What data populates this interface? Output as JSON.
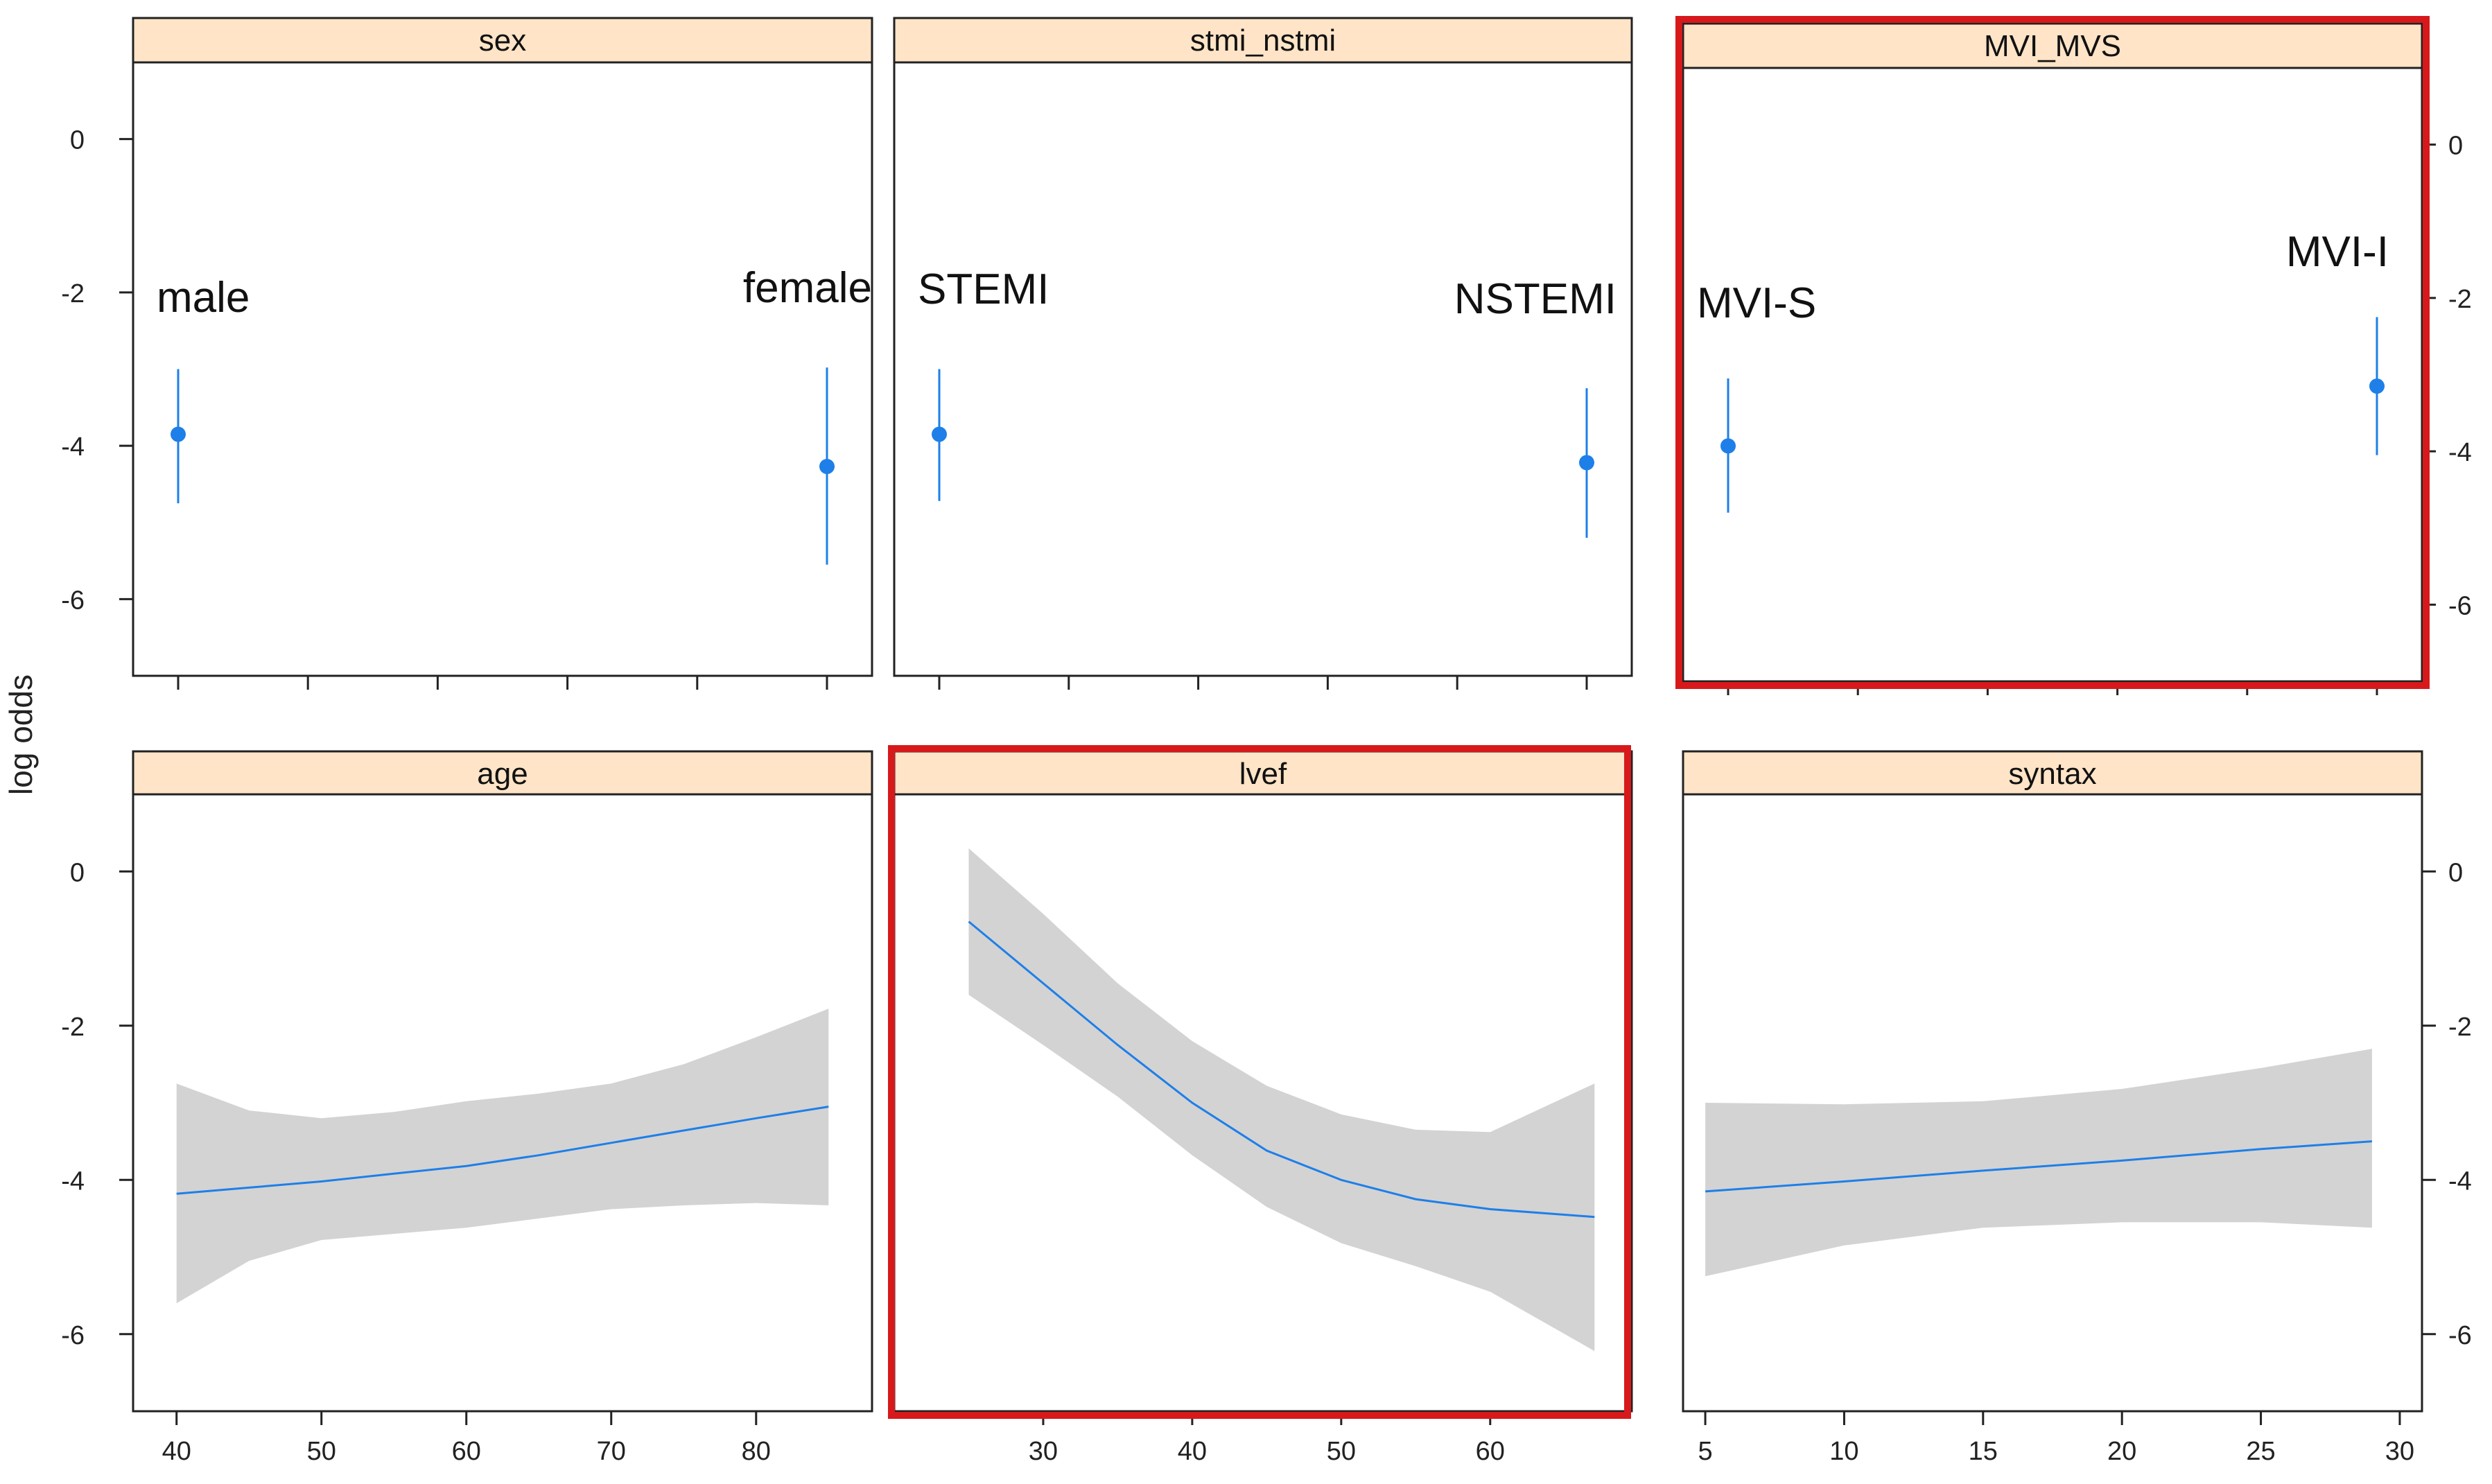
{
  "figure": {
    "ylabel": "log odds",
    "highlight_color": "#d7191c",
    "strip_color": "#ffe4c7",
    "line_color": "#1e7fe8",
    "band_color": "#d3d3d3"
  },
  "chart_data": [
    {
      "type": "scatter",
      "title": "sex",
      "ylim": [
        -7,
        1
      ],
      "yticks": [
        "0",
        "-2",
        "-4",
        "-6"
      ],
      "categories": [
        "male",
        "female"
      ],
      "values": [
        -3.85,
        -4.27
      ],
      "lower": [
        -4.75,
        -5.55
      ],
      "upper": [
        -3.0,
        -2.98
      ],
      "highlighted": false
    },
    {
      "type": "scatter",
      "title": "stmi_nstmi",
      "ylim": [
        -7,
        1
      ],
      "categories": [
        "STEMI",
        "NSTEMI"
      ],
      "values": [
        -3.85,
        -4.22
      ],
      "lower": [
        -4.72,
        -5.2
      ],
      "upper": [
        -3.0,
        -3.25
      ],
      "highlighted": false
    },
    {
      "type": "scatter",
      "title": "MVI_MVS",
      "ylim": [
        -7,
        1
      ],
      "yticks": [
        "0",
        "-2",
        "-4",
        "-6"
      ],
      "categories": [
        "MVI-S",
        "MVI-I"
      ],
      "values": [
        -3.93,
        -3.15
      ],
      "lower": [
        -4.8,
        -4.05
      ],
      "upper": [
        -3.05,
        -2.25
      ],
      "highlighted": true
    },
    {
      "type": "line",
      "title": "age",
      "ylim": [
        -7,
        1
      ],
      "yticks": [
        "0",
        "-2",
        "-4",
        "-6"
      ],
      "xlim": [
        37,
        88
      ],
      "xticks": [
        "40",
        "50",
        "60",
        "70",
        "80"
      ],
      "x": [
        40,
        45,
        50,
        55,
        60,
        65,
        70,
        75,
        80,
        85
      ],
      "y": [
        -4.18,
        -4.1,
        -4.02,
        -3.92,
        -3.82,
        -3.68,
        -3.52,
        -3.36,
        -3.2,
        -3.05
      ],
      "lower": [
        -5.6,
        -5.05,
        -4.78,
        -4.7,
        -4.62,
        -4.5,
        -4.38,
        -4.33,
        -4.3,
        -4.33
      ],
      "upper": [
        -2.75,
        -3.1,
        -3.2,
        -3.12,
        -2.98,
        -2.88,
        -2.75,
        -2.5,
        -2.15,
        -1.78
      ],
      "highlighted": false
    },
    {
      "type": "line",
      "title": "lvef",
      "ylim": [
        -7,
        1
      ],
      "xlim": [
        20,
        69.5
      ],
      "xticks": [
        "30",
        "40",
        "50",
        "60"
      ],
      "x": [
        25,
        30,
        35,
        40,
        45,
        50,
        55,
        60,
        67
      ],
      "y": [
        -0.65,
        -1.45,
        -2.25,
        -3.0,
        -3.62,
        -4.0,
        -4.25,
        -4.38,
        -4.48
      ],
      "lower": [
        -1.6,
        -2.25,
        -2.92,
        -3.68,
        -4.35,
        -4.82,
        -5.12,
        -5.45,
        -6.22
      ],
      "upper": [
        0.3,
        -0.55,
        -1.45,
        -2.2,
        -2.78,
        -3.15,
        -3.35,
        -3.38,
        -2.75
      ],
      "highlighted": true
    },
    {
      "type": "line",
      "title": "syntax",
      "ylim": [
        -7,
        1
      ],
      "yticks": [
        "0",
        "-2",
        "-4",
        "-6"
      ],
      "xlim": [
        4.2,
        30.8
      ],
      "xticks": [
        "5",
        "10",
        "15",
        "20",
        "25",
        "30"
      ],
      "x": [
        5,
        10,
        15,
        20,
        25,
        29
      ],
      "y": [
        -4.15,
        -4.02,
        -3.88,
        -3.75,
        -3.6,
        -3.5
      ],
      "lower": [
        -5.25,
        -4.85,
        -4.62,
        -4.55,
        -4.55,
        -4.62
      ],
      "upper": [
        -3.0,
        -3.02,
        -2.98,
        -2.82,
        -2.55,
        -2.3
      ],
      "highlighted": false
    }
  ]
}
